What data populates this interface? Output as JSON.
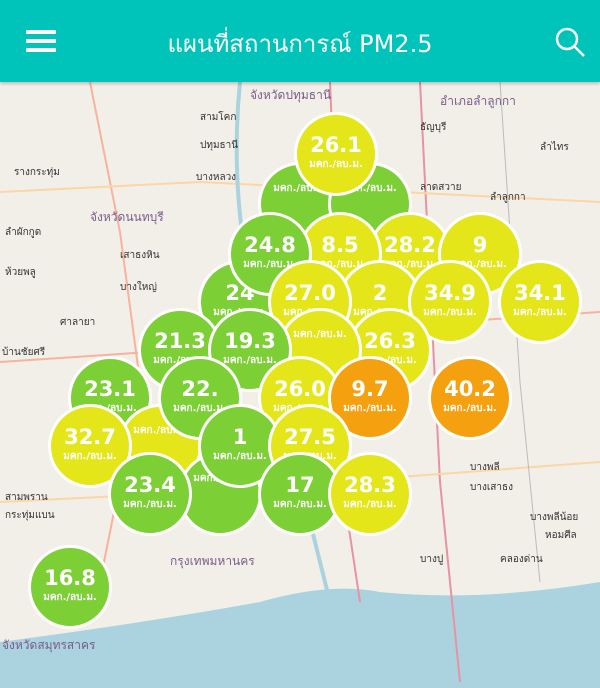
{
  "header": {
    "title": "แผนที่สถานการณ์ PM2.5",
    "menu_icon": "hamburger-menu-icon",
    "search_icon": "search-icon"
  },
  "colors": {
    "header": "#00c4b9",
    "good": "#7ccf35",
    "moderate": "#e5e619",
    "unhealthy": "#f5a00f",
    "sea": "#aad3df"
  },
  "unit": "มคก./ลบ.ม.",
  "map_labels": [
    {
      "text": "จังหวัดปทุมธานี",
      "prov": true
    },
    {
      "text": "สามโคก"
    },
    {
      "text": "ปทุมธานี"
    },
    {
      "text": "ธัญบุรี"
    },
    {
      "text": "รางกระทุ่ม"
    },
    {
      "text": "บางหลวง"
    },
    {
      "text": "อำเภอลำลูกกา",
      "prov": true
    },
    {
      "text": "จังหวัดนนทบุรี",
      "prov": true
    },
    {
      "text": "ลาดสวาย"
    },
    {
      "text": "ลำผักกูด"
    },
    {
      "text": "ลำลูกกา"
    },
    {
      "text": "ลำไทร"
    },
    {
      "text": "ห้วยพลู"
    },
    {
      "text": "เสาธงหิน"
    },
    {
      "text": "บางใหญ่"
    },
    {
      "text": "ศาลายา"
    },
    {
      "text": "บ้านชัยศรี"
    },
    {
      "text": "สามพราน"
    },
    {
      "text": "กระทุ่มแบน"
    },
    {
      "text": "กรุงเทพมหานคร",
      "prov": true
    },
    {
      "text": "บางพลี"
    },
    {
      "text": "บางเสาธง"
    },
    {
      "text": "บางพลีน้อย"
    },
    {
      "text": "หอมศีล"
    },
    {
      "text": "บางปู"
    },
    {
      "text": "คลองด่าน"
    },
    {
      "text": "จังหวัดสมุทรสาคร",
      "prov": true
    }
  ],
  "stations": [
    {
      "value": "",
      "level": "good"
    },
    {
      "value": "",
      "level": "good"
    },
    {
      "value": "26.1",
      "level": "moderate"
    },
    {
      "value": "28.2",
      "level": "moderate"
    },
    {
      "value": "9",
      "level": "moderate"
    },
    {
      "value": "24",
      "level": "good"
    },
    {
      "value": "8.5",
      "level": "moderate"
    },
    {
      "value": "24.8",
      "level": "good"
    },
    {
      "value": "2",
      "level": "moderate"
    },
    {
      "value": "27.0",
      "level": "moderate"
    },
    {
      "value": "34.9",
      "level": "moderate"
    },
    {
      "value": "26.3",
      "level": "moderate"
    },
    {
      "value": "21.3",
      "level": "good"
    },
    {
      "value": "23.1",
      "level": "good"
    },
    {
      "value": "",
      "level": "moderate"
    },
    {
      "value": "32.7",
      "level": "moderate"
    },
    {
      "value": "",
      "level": "moderate"
    },
    {
      "value": "19.3",
      "level": "good"
    },
    {
      "value": "22.",
      "level": "good"
    },
    {
      "value": "",
      "level": "good"
    },
    {
      "value": "23.4",
      "level": "good"
    },
    {
      "value": "26.0",
      "level": "moderate"
    },
    {
      "value": "9.7",
      "level": "unhealthy"
    },
    {
      "value": "40.2",
      "level": "unhealthy"
    },
    {
      "value": "34.1",
      "level": "moderate"
    },
    {
      "value": "1",
      "level": "good"
    },
    {
      "value": "27.5",
      "level": "moderate"
    },
    {
      "value": "17",
      "level": "good"
    },
    {
      "value": "28.3",
      "level": "moderate"
    },
    {
      "value": "16.8",
      "level": "good"
    }
  ]
}
